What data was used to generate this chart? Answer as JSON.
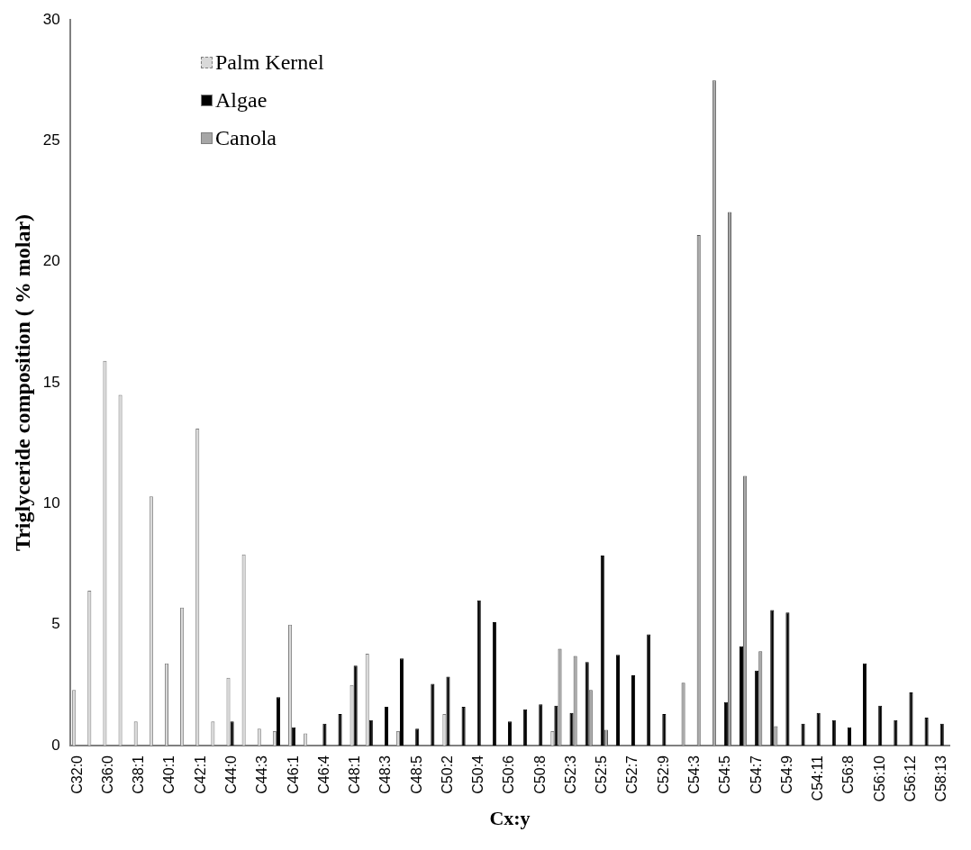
{
  "chart_data": {
    "type": "bar",
    "xlabel": "Cx:y",
    "ylabel": "Triglyceride composition ( % molar)",
    "categories": [
      "C32:0",
      null,
      "C36:0",
      null,
      "C38:1",
      null,
      "C40:1",
      null,
      "C42:1",
      null,
      "C44:0",
      null,
      "C44:3",
      null,
      "C46:1",
      null,
      "C46:4",
      null,
      "C48:1",
      null,
      "C48:3",
      null,
      "C48:5",
      null,
      "C50:2",
      null,
      "C50:4",
      null,
      "C50:6",
      null,
      "C50:8",
      null,
      "C52:3",
      null,
      "C52:5",
      null,
      "C52:7",
      null,
      "C52:9",
      null,
      "C54:3",
      null,
      "C54:5",
      null,
      "C54:7",
      null,
      "C54:9",
      null,
      "C54:11",
      null,
      "C56:8",
      null,
      "C56:10",
      null,
      "C56:12",
      null,
      "C58:13"
    ],
    "series": [
      {
        "name": "Palm Kernel",
        "color": "#d9d9d9",
        "values": [
          2.3,
          6.4,
          15.9,
          14.5,
          1.0,
          10.3,
          3.4,
          5.7,
          13.1,
          1.0,
          2.8,
          7.9,
          0.7,
          0.6,
          5.0,
          0.5,
          null,
          null,
          2.5,
          3.8,
          null,
          0.6,
          null,
          null,
          1.3,
          null,
          null,
          null,
          null,
          null,
          null,
          0.6,
          null,
          null,
          null,
          null,
          null,
          null,
          null,
          null,
          null,
          null,
          null,
          null,
          null,
          null,
          null,
          null,
          null,
          null,
          null,
          null,
          null,
          null,
          null,
          null,
          null
        ]
      },
      {
        "name": "Algae",
        "color": "#000000",
        "values": [
          null,
          null,
          null,
          null,
          null,
          null,
          null,
          null,
          null,
          null,
          1.0,
          null,
          null,
          2.0,
          0.75,
          null,
          0.9,
          1.3,
          3.3,
          1.05,
          1.6,
          3.6,
          0.7,
          2.55,
          2.85,
          1.6,
          6.0,
          5.1,
          1.0,
          1.5,
          1.7,
          1.65,
          1.35,
          3.45,
          7.85,
          3.75,
          2.9,
          4.6,
          1.3,
          null,
          null,
          null,
          1.8,
          4.1,
          3.1,
          5.6,
          5.5,
          0.9,
          1.35,
          1.05,
          0.75,
          3.4,
          1.65,
          1.05,
          2.2,
          1.15,
          0.9
        ]
      },
      {
        "name": "Canola",
        "color": "#a6a6a6",
        "values": [
          null,
          null,
          null,
          null,
          null,
          null,
          null,
          null,
          null,
          null,
          null,
          null,
          null,
          null,
          null,
          null,
          null,
          null,
          null,
          null,
          null,
          null,
          null,
          null,
          null,
          null,
          null,
          null,
          null,
          null,
          null,
          4.0,
          3.7,
          2.3,
          0.65,
          null,
          null,
          null,
          null,
          2.6,
          21.1,
          27.5,
          22.05,
          11.15,
          3.9,
          0.8,
          null,
          null,
          null,
          null,
          null,
          null,
          null,
          null,
          null,
          null,
          null
        ]
      }
    ],
    "ylim": [
      0,
      30
    ],
    "yticks": [
      0,
      5,
      10,
      15,
      20,
      25,
      30
    ],
    "grid": false,
    "legend": "top left"
  }
}
